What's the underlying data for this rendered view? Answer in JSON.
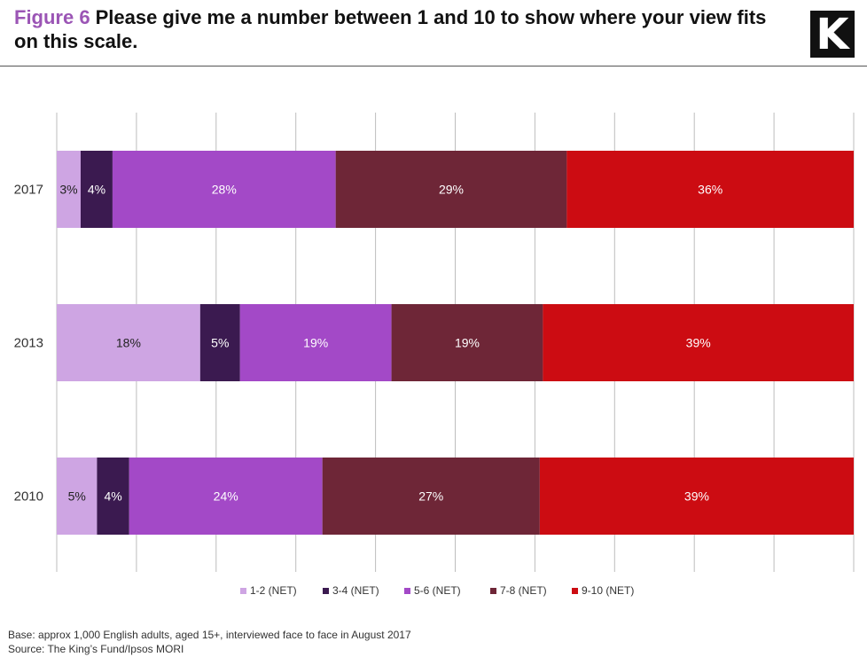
{
  "header": {
    "figure_label": "Figure 6",
    "title": "Please give me a number between 1 and 10 to show where your view fits on this scale.",
    "logo_letter": "K"
  },
  "chart_data": {
    "type": "bar",
    "orientation": "horizontal",
    "stacked": true,
    "categories": [
      "2017",
      "2013",
      "2010"
    ],
    "series": [
      {
        "name": "1-2 (NET)",
        "color": "#cea5e3",
        "values": [
          3,
          18,
          5
        ],
        "labels": [
          "3%",
          "18%",
          "5%"
        ]
      },
      {
        "name": "3-4 (NET)",
        "color": "#3b1a50",
        "values": [
          4,
          5,
          4
        ],
        "labels": [
          "4%",
          "5%",
          "4%"
        ]
      },
      {
        "name": "5-6 (NET)",
        "color": "#a349c7",
        "values": [
          28,
          19,
          24
        ],
        "labels": [
          "28%",
          "19%",
          "24%"
        ]
      },
      {
        "name": "7-8 (NET)",
        "color": "#6e2637",
        "values": [
          29,
          19,
          27
        ],
        "labels": [
          "29%",
          "19%",
          "27%"
        ]
      },
      {
        "name": "9-10 (NET)",
        "color": "#cc0c12",
        "values": [
          36,
          39,
          39
        ],
        "labels": [
          "36%",
          "39%",
          "39%"
        ]
      }
    ],
    "grid": true,
    "legend_position": "bottom"
  },
  "footnote": {
    "base": "Base: approx 1,000 English adults, aged 15+, interviewed face to face in August 2017",
    "source": "Source: The King’s Fund/Ipsos MORI"
  }
}
